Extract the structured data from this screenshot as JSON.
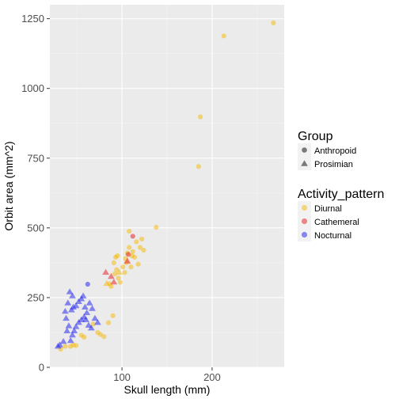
{
  "chart_data": {
    "type": "scatter",
    "xlabel": "Skull length (mm)",
    "ylabel": "Orbit area (mm^2)",
    "xlim": [
      20,
      280
    ],
    "ylim": [
      0,
      1300
    ],
    "x_ticks": [
      100,
      200
    ],
    "x_tick_labels": [
      "100",
      "200"
    ],
    "x_minor_ticks": [
      50,
      150,
      250
    ],
    "y_ticks": [
      0,
      250,
      500,
      750,
      1000,
      1250
    ],
    "y_tick_labels": [
      "0",
      "250",
      "500",
      "750",
      "1000",
      "1250"
    ],
    "y_minor_ticks": [
      125,
      375,
      625,
      875,
      1125
    ],
    "grid": true,
    "legend_position": "right",
    "legends": [
      {
        "title": "Group",
        "entries": [
          {
            "label": "Anthropoid",
            "shape": "circle"
          },
          {
            "label": "Prosimian",
            "shape": "triangle"
          }
        ]
      },
      {
        "title": "Activity_pattern",
        "entries": [
          {
            "label": "Diurnal",
            "color": "#f5b800"
          },
          {
            "label": "Cathemeral",
            "color": "#e8141a"
          },
          {
            "label": "Nocturnal",
            "color": "#1a1aee"
          }
        ]
      }
    ],
    "colors": {
      "Diurnal": "#f5b800",
      "Cathemeral": "#e8141a",
      "Nocturnal": "#1a1aee"
    },
    "series": [
      {
        "group": "Anthropoid",
        "activity": "Diurnal",
        "points": [
          [
            32,
            65
          ],
          [
            37,
            75
          ],
          [
            43,
            75
          ],
          [
            46,
            80
          ],
          [
            49,
            78
          ],
          [
            55,
            115
          ],
          [
            58,
            108
          ],
          [
            68,
            155
          ],
          [
            73,
            125
          ],
          [
            76,
            118
          ],
          [
            80,
            110
          ],
          [
            85,
            160
          ],
          [
            90,
            185
          ],
          [
            86,
            300
          ],
          [
            88,
            290
          ],
          [
            92,
            335
          ],
          [
            94,
            350
          ],
          [
            96,
            320
          ],
          [
            98,
            305
          ],
          [
            91,
            375
          ],
          [
            93,
            395
          ],
          [
            95,
            400
          ],
          [
            101,
            360
          ],
          [
            103,
            340
          ],
          [
            105,
            375
          ],
          [
            104,
            390
          ],
          [
            106,
            410
          ],
          [
            108,
            430
          ],
          [
            111,
            400
          ],
          [
            110,
            360
          ],
          [
            112,
            415
          ],
          [
            114,
            395
          ],
          [
            116,
            450
          ],
          [
            118,
            370
          ],
          [
            120,
            430
          ],
          [
            122,
            460
          ],
          [
            124,
            420
          ],
          [
            108,
            488
          ],
          [
            138,
            502
          ],
          [
            185,
            720
          ],
          [
            187,
            898
          ],
          [
            213,
            1188
          ],
          [
            268,
            1235
          ]
        ]
      },
      {
        "group": "Anthropoid",
        "activity": "Cathemeral",
        "points": [
          [
            107,
            405
          ],
          [
            112,
            470
          ]
        ]
      },
      {
        "group": "Anthropoid",
        "activity": "Nocturnal",
        "points": [
          [
            62,
            298
          ]
        ]
      },
      {
        "group": "Prosimian",
        "activity": "Diurnal",
        "points": [
          [
            83,
            300
          ],
          [
            97,
            340
          ]
        ]
      },
      {
        "group": "Prosimian",
        "activity": "Cathemeral",
        "points": [
          [
            82,
            340
          ],
          [
            88,
            325
          ],
          [
            91,
            305
          ],
          [
            106,
            380
          ]
        ]
      },
      {
        "group": "Prosimian",
        "activity": "Nocturnal",
        "points": [
          [
            29,
            75
          ],
          [
            31,
            80
          ],
          [
            35,
            92
          ],
          [
            39,
            130
          ],
          [
            41,
            148
          ],
          [
            43,
            95
          ],
          [
            45,
            115
          ],
          [
            47,
            130
          ],
          [
            49,
            145
          ],
          [
            52,
            160
          ],
          [
            55,
            170
          ],
          [
            58,
            180
          ],
          [
            60,
            170
          ],
          [
            63,
            150
          ],
          [
            66,
            140
          ],
          [
            42,
            270
          ],
          [
            45,
            255
          ],
          [
            40,
            230
          ],
          [
            44,
            205
          ],
          [
            46,
            215
          ],
          [
            49,
            220
          ],
          [
            52,
            235
          ],
          [
            55,
            245
          ],
          [
            57,
            255
          ],
          [
            59,
            215
          ],
          [
            61,
            195
          ],
          [
            64,
            230
          ],
          [
            67,
            210
          ],
          [
            37,
            200
          ],
          [
            70,
            175
          ],
          [
            73,
            160
          ],
          [
            38,
            175
          ]
        ]
      }
    ]
  }
}
